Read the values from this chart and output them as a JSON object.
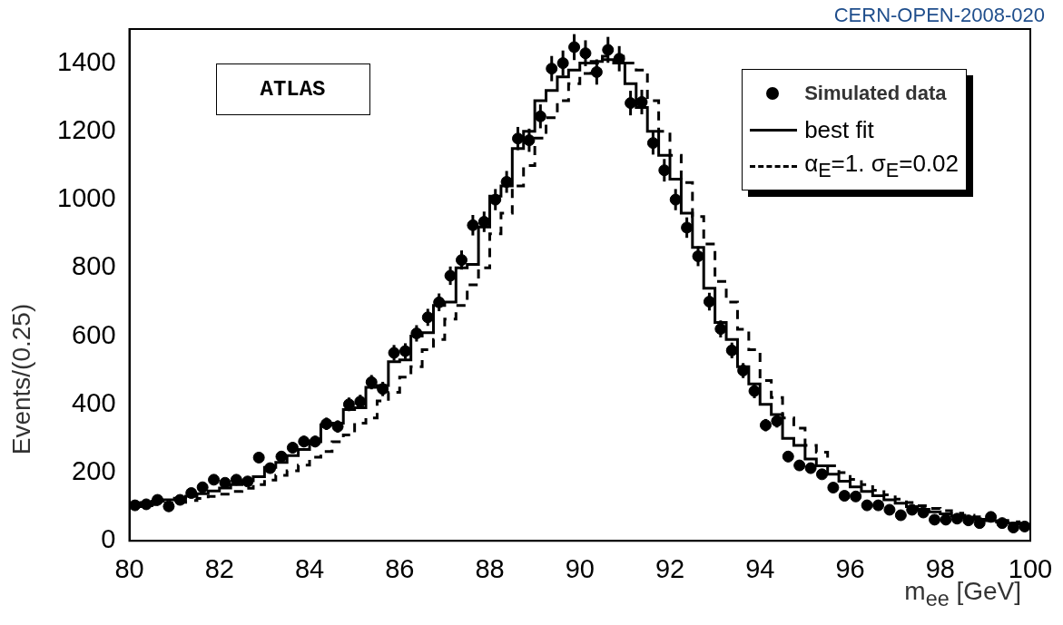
{
  "chart_data": {
    "type": "scatter",
    "xlabel": "m$_{ee}$ [GeV]",
    "ylabel": "Events/(0.25)",
    "annotations": [
      "ATLAS",
      "CERN-OPEN-2008-020"
    ],
    "xlim": [
      80,
      100
    ],
    "xticks": [
      80,
      82,
      84,
      86,
      88,
      90,
      92,
      94,
      96,
      98,
      100
    ],
    "ylim": [
      0,
      1500
    ],
    "yticks": [
      0,
      200,
      400,
      600,
      800,
      1000,
      1200,
      1400
    ],
    "grid": false,
    "legend": "top right",
    "x": [
      80.125,
      80.375,
      80.625,
      80.875,
      81.125,
      81.375,
      81.625,
      81.875,
      82.125,
      82.375,
      82.625,
      82.875,
      83.125,
      83.375,
      83.625,
      83.875,
      84.125,
      84.375,
      84.625,
      84.875,
      85.125,
      85.375,
      85.625,
      85.875,
      86.125,
      86.375,
      86.625,
      86.875,
      87.125,
      87.375,
      87.625,
      87.875,
      88.125,
      88.375,
      88.625,
      88.875,
      89.125,
      89.375,
      89.625,
      89.875,
      90.125,
      90.375,
      90.625,
      90.875,
      91.125,
      91.375,
      91.625,
      91.875,
      92.125,
      92.375,
      92.625,
      92.875,
      93.125,
      93.375,
      93.625,
      93.875,
      94.125,
      94.375,
      94.625,
      94.875,
      95.125,
      95.375,
      95.625,
      95.875,
      96.125,
      96.375,
      96.625,
      96.875,
      97.125,
      97.375,
      97.625,
      97.875,
      98.125,
      98.375,
      98.625,
      98.875,
      99.125,
      99.375,
      99.625,
      99.875
    ],
    "series": [
      {
        "name": "Simulated data",
        "marker": "circle",
        "color": "#000000",
        "values": [
          104,
          107,
          120,
          101,
          120,
          140,
          157,
          179,
          170,
          179,
          174,
          244,
          213,
          247,
          273,
          291,
          291,
          343,
          335,
          400,
          408,
          465,
          445,
          551,
          556,
          608,
          655,
          699,
          777,
          823,
          925,
          935,
          1000,
          1052,
          1179,
          1174,
          1244,
          1384,
          1400,
          1447,
          1429,
          1374,
          1439,
          1413,
          1283,
          1286,
          1166,
          1086,
          1000,
          918,
          834,
          701,
          621,
          558,
          499,
          439,
          339,
          351,
          247,
          221,
          213,
          195,
          156,
          132,
          130,
          104,
          104,
          91,
          75,
          91,
          83,
          62,
          62,
          65,
          60,
          52,
          70,
          52,
          39,
          42
        ],
        "errors": [
          10,
          10,
          11,
          10,
          11,
          12,
          12,
          13,
          13,
          13,
          13,
          15,
          14,
          15,
          16,
          17,
          17,
          18,
          18,
          20,
          20,
          21,
          21,
          23,
          23,
          24,
          25,
          26,
          27,
          28,
          30,
          30,
          31,
          32,
          34,
          34,
          35,
          37,
          37,
          38,
          38,
          37,
          38,
          37,
          36,
          36,
          34,
          33,
          31,
          30,
          29,
          26,
          25,
          23,
          22,
          21,
          18,
          19,
          16,
          15,
          15,
          14,
          12,
          11,
          11,
          10,
          10,
          10,
          9,
          10,
          9,
          8,
          8,
          8,
          8,
          7,
          8,
          7,
          6,
          6
        ]
      },
      {
        "name": "best fit",
        "type": "step",
        "marker": "none",
        "line_style": "solid",
        "color": "#000000",
        "values": [
          108,
          112,
          116,
          120,
          125,
          131,
          138,
          146,
          155,
          165,
          176,
          188,
          215,
          230,
          250,
          268,
          290,
          340,
          345,
          385,
          390,
          450,
          455,
          525,
          530,
          600,
          610,
          690,
          700,
          800,
          810,
          920,
          1010,
          1040,
          1150,
          1200,
          1290,
          1320,
          1360,
          1380,
          1400,
          1405,
          1410,
          1400,
          1340,
          1270,
          1200,
          1130,
          1060,
          960,
          860,
          740,
          640,
          590,
          510,
          460,
          400,
          370,
          300,
          280,
          240,
          220,
          195,
          175,
          158,
          145,
          132,
          120,
          110,
          100,
          92,
          85,
          79,
          73,
          68,
          63,
          59,
          55,
          52,
          49
        ]
      },
      {
        "name": "α$_{E}$=1. σ$_{E}$=0.02",
        "type": "step",
        "marker": "none",
        "line_style": "dashed",
        "color": "#000000",
        "values": [
          100,
          103,
          106,
          110,
          113,
          118,
          124,
          130,
          137,
          145,
          154,
          165,
          178,
          192,
          205,
          222,
          245,
          262,
          290,
          310,
          345,
          360,
          410,
          435,
          480,
          510,
          560,
          590,
          650,
          690,
          750,
          800,
          900,
          960,
          1040,
          1100,
          1180,
          1240,
          1290,
          1340,
          1370,
          1400,
          1420,
          1420,
          1400,
          1380,
          1290,
          1200,
          1130,
          1050,
          950,
          870,
          760,
          700,
          620,
          560,
          470,
          420,
          360,
          330,
          280,
          260,
          220,
          200,
          180,
          165,
          148,
          135,
          122,
          112,
          103,
          95,
          88,
          81,
          75,
          70,
          65,
          60,
          56,
          52
        ]
      }
    ]
  }
}
